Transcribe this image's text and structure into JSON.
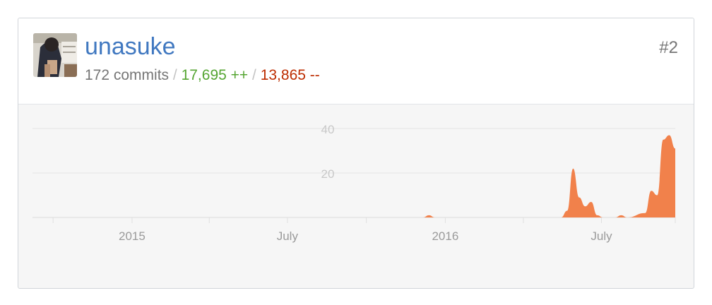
{
  "contributor": {
    "username": "unasuke",
    "rank": "#2",
    "commits": "172 commits",
    "additions": "17,695 ++",
    "deletions": "13,865 --",
    "separator": "/"
  },
  "colors": {
    "link": "#4078c0",
    "additions": "#55a532",
    "deletions": "#bd2c00",
    "area": "#f1814b"
  },
  "chart_data": {
    "type": "area",
    "title": "",
    "xlabel": "",
    "ylabel": "",
    "x_ticks": [
      "2015",
      "July",
      "2016",
      "July"
    ],
    "y_ticks": [
      20,
      40
    ],
    "ylim": [
      0,
      40
    ],
    "xlim": [
      "2014-09-07",
      "2016-09-25"
    ],
    "grid": true,
    "series": [
      {
        "x": [
          "2014-09-07",
          "2015-12-06",
          "2015-12-13",
          "2015-12-20",
          "2016-05-15",
          "2016-05-22",
          "2016-05-29",
          "2016-06-05",
          "2016-06-12",
          "2016-06-19",
          "2016-06-26",
          "2016-07-03",
          "2016-07-17",
          "2016-07-24",
          "2016-07-31",
          "2016-08-21",
          "2016-08-28",
          "2016-09-04",
          "2016-09-11",
          "2016-09-18",
          "2016-09-25"
        ],
        "values": [
          0,
          0,
          1,
          0,
          0,
          3,
          22,
          9,
          5,
          7,
          1,
          0,
          0,
          1,
          0,
          2,
          12,
          10,
          35,
          37,
          31
        ]
      }
    ]
  }
}
